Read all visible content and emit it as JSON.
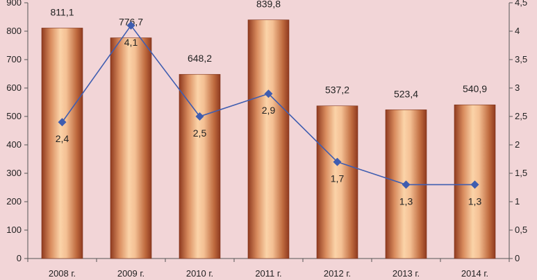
{
  "chart_data": {
    "type": "bar",
    "categories": [
      "2008 г.",
      "2009 г.",
      "2010 г.",
      "2011 г.",
      "2012 г.",
      "2013 г.",
      "2014 г."
    ],
    "series": [
      {
        "type": "bar",
        "axis": "left",
        "values": [
          811.1,
          776.7,
          648.2,
          839.8,
          537.2,
          523.4,
          540.9
        ],
        "labels": [
          "811,1",
          "776,7",
          "648,2",
          "839,8",
          "537,2",
          "523,4",
          "540,9"
        ],
        "color": "#b5552f"
      },
      {
        "type": "line",
        "axis": "right",
        "values": [
          2.4,
          4.1,
          2.5,
          2.9,
          1.7,
          1.3,
          1.3
        ],
        "labels": [
          "2,4",
          "4,1",
          "2,5",
          "2,9",
          "1,7",
          "1,3",
          "1,3"
        ],
        "color": "#3f5db0",
        "marker": "diamond"
      }
    ],
    "left_axis": {
      "range": [
        0,
        900
      ],
      "ticks": [
        0,
        100,
        200,
        300,
        400,
        500,
        600,
        700,
        800,
        900
      ],
      "tick_labels": [
        "0",
        "100",
        "200",
        "300",
        "400",
        "500",
        "600",
        "700",
        "800",
        "900"
      ]
    },
    "right_axis": {
      "range": [
        0,
        4.5
      ],
      "ticks": [
        0,
        0.5,
        1,
        1.5,
        2,
        2.5,
        3,
        3.5,
        4,
        4.5
      ],
      "tick_labels": [
        "0",
        "0,5",
        "1",
        "1,5",
        "2",
        "2,5",
        "3",
        "3,5",
        "4",
        "4,5"
      ]
    },
    "grid": false,
    "legend": "none",
    "title": "",
    "xlabel": "",
    "ylabel": "",
    "background_color": "#f2d5d7",
    "axis_color": "#555555"
  }
}
